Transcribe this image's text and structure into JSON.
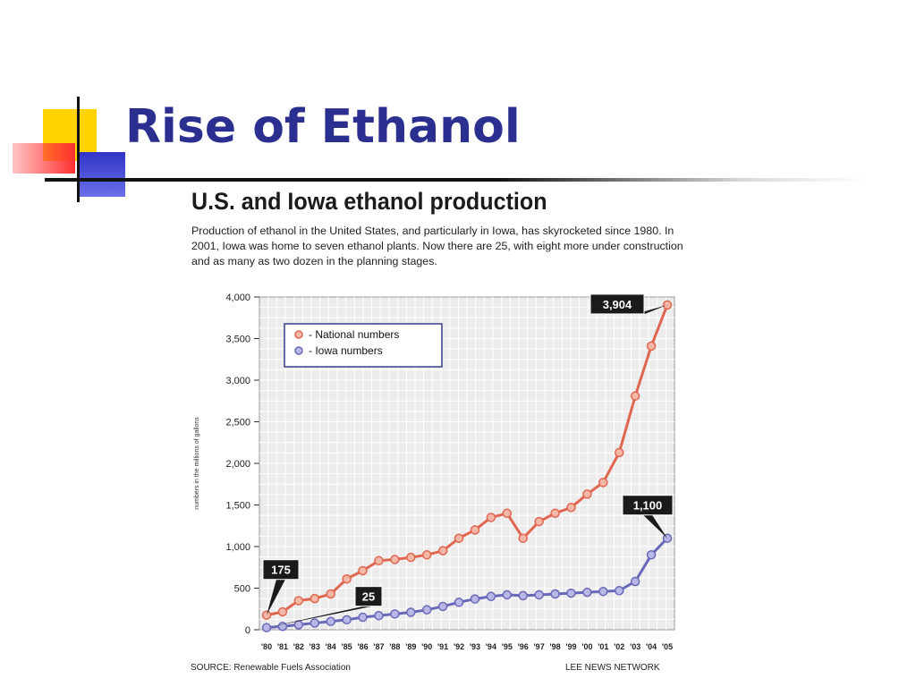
{
  "slide": {
    "title": "Rise of Ethanol",
    "colors": {
      "title": "#2b2f8f",
      "accent_yellow": "#ffd200",
      "accent_red": "#ff3333",
      "accent_blue": "#3a3fd0"
    }
  },
  "chart_data": {
    "type": "line",
    "title": "U.S. and Iowa ethanol production",
    "subtitle": "Production of ethanol in the United States, and particularly in Iowa, has skyrocketed since 1980. In 2001, Iowa was home to seven ethanol plants. Now there are 25, with eight more under construction and as many as two dozen in the planning stages.",
    "ylabel": "numbers in the millions of gallons",
    "xlabel": "",
    "ylim": [
      0,
      4000
    ],
    "yticks": [
      "0",
      "500",
      "1,000",
      "1,500",
      "2,000",
      "2,500",
      "3,000",
      "3,500",
      "4,000"
    ],
    "ytick_values": [
      0,
      500,
      1000,
      1500,
      2000,
      2500,
      3000,
      3500,
      4000
    ],
    "categories": [
      "'80",
      "'81",
      "'82",
      "'83",
      "'84",
      "'85",
      "'86",
      "'87",
      "'88",
      "'89",
      "'90",
      "'91",
      "'92",
      "'93",
      "'94",
      "'95",
      "'96",
      "'97",
      "'98",
      "'99",
      "'00",
      "'01",
      "'02",
      "'03",
      "'04",
      "'05"
    ],
    "grid": true,
    "legend_position": "top-left",
    "series": [
      {
        "name": "- National numbers",
        "color": "#e0664f",
        "values": [
          175,
          215,
          350,
          375,
          430,
          610,
          710,
          830,
          845,
          870,
          900,
          950,
          1100,
          1200,
          1350,
          1400,
          1100,
          1300,
          1400,
          1470,
          1630,
          1770,
          2130,
          2810,
          3410,
          3904
        ]
      },
      {
        "name": "- Iowa numbers",
        "color": "#6a68b8",
        "values": [
          25,
          40,
          60,
          80,
          100,
          120,
          150,
          170,
          190,
          210,
          240,
          280,
          330,
          370,
          400,
          420,
          410,
          420,
          430,
          440,
          450,
          460,
          470,
          580,
          900,
          1100
        ]
      }
    ],
    "annotations": [
      {
        "text": "175",
        "series": 0,
        "index": 0
      },
      {
        "text": "25",
        "series": 1,
        "index": 0
      },
      {
        "text": "3,904",
        "series": 0,
        "index": 25
      },
      {
        "text": "1,100",
        "series": 1,
        "index": 25
      }
    ],
    "source": "SOURCE: Renewable Fuels Association",
    "credit": "LEE NEWS NETWORK"
  }
}
